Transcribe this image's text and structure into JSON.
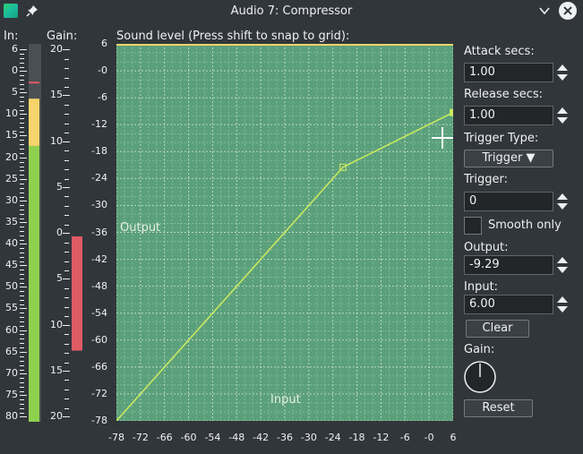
{
  "window": {
    "title": "Audio 7: Compressor"
  },
  "labels": {
    "in": "In:",
    "gain": "Gain:",
    "sound_level": "Sound level (Press shift to snap to grid):",
    "plot_output": "Output",
    "plot_input": "Input"
  },
  "in_meter": {
    "ticks": [
      "6",
      "0",
      "5",
      "10",
      "15",
      "20",
      "25",
      "30",
      "35",
      "40",
      "45",
      "50",
      "55",
      "60",
      "65",
      "70",
      "75",
      "80"
    ],
    "level_fraction": 0.795,
    "peak_fraction": 0.9,
    "colors": {
      "green": "#8fd14f",
      "yellow": "#f7d46b",
      "red": "#de5b65",
      "bg": "#4a4f53"
    }
  },
  "gain_meter": {
    "ticks": [
      "20",
      "15",
      "10",
      "5",
      "0",
      "5",
      "10",
      "15",
      "20"
    ],
    "reduction_db": 9.29,
    "color": "#de5b65"
  },
  "plot": {
    "y_ticks": [
      "6",
      "-0",
      "-6",
      "-12",
      "-18",
      "-24",
      "-30",
      "-36",
      "-42",
      "-48",
      "-54",
      "-60",
      "-66",
      "-72",
      "-78"
    ],
    "x_ticks": [
      "-78",
      "-72",
      "-66",
      "-60",
      "-54",
      "-48",
      "-42",
      "-36",
      "-30",
      "-24",
      "-18",
      "-12",
      "-6",
      "-0",
      "6"
    ],
    "curve": [
      [
        -78,
        -78
      ],
      [
        -21.5,
        -21.5
      ],
      [
        6,
        -9.29
      ]
    ],
    "background": "#5aa07a",
    "line_color": "#c9e860"
  },
  "controls": {
    "attack_label": "Attack secs:",
    "attack_value": "1.00",
    "release_label": "Release secs:",
    "release_value": "1.00",
    "trigger_type_label": "Trigger Type:",
    "trigger_type_value": "Trigger ▼",
    "trigger_label": "Trigger:",
    "trigger_value": "0",
    "smooth_only_label": "Smooth only",
    "output_label": "Output:",
    "output_value": "-9.29",
    "input_label": "Input:",
    "input_value": "6.00",
    "clear_label": "Clear",
    "gain_label": "Gain:",
    "reset_label": "Reset"
  }
}
